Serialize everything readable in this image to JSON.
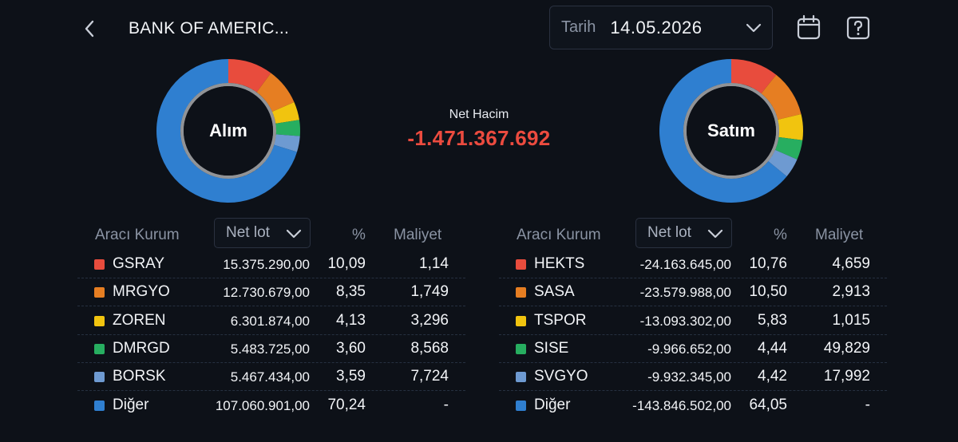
{
  "header": {
    "title": "BANK OF AMERIC...",
    "date_label": "Tarih",
    "date_value": "14.05.2026"
  },
  "net_volume": {
    "label": "Net Hacim",
    "value": "-1.471.367.692",
    "color": "#ec4b3f"
  },
  "colors": {
    "background": "#0d1118",
    "slice": [
      "#e84c3d",
      "#e67e22",
      "#f1c40f",
      "#27ae60",
      "#6e9ad1",
      "#2f7fd0"
    ]
  },
  "buy": {
    "center_label": "Alım",
    "columns": {
      "broker": "Aracı Kurum",
      "sort": "Net lot",
      "pct": "%",
      "cost": "Maliyet"
    },
    "rows": [
      {
        "name": "GSRAY",
        "lot": "15.375.290,00",
        "pct": "10,09",
        "cost": "1,14"
      },
      {
        "name": "MRGYO",
        "lot": "12.730.679,00",
        "pct": "8,35",
        "cost": "1,749"
      },
      {
        "name": "ZOREN",
        "lot": "6.301.874,00",
        "pct": "4,13",
        "cost": "3,296"
      },
      {
        "name": "DMRGD",
        "lot": "5.483.725,00",
        "pct": "3,60",
        "cost": "8,568"
      },
      {
        "name": "BORSK",
        "lot": "5.467.434,00",
        "pct": "3,59",
        "cost": "7,724"
      },
      {
        "name": "Diğer",
        "lot": "107.060.901,00",
        "pct": "70,24",
        "cost": "-"
      }
    ],
    "chart_data": {
      "type": "pie",
      "values": [
        10.09,
        8.35,
        4.13,
        3.6,
        3.59,
        70.24
      ]
    }
  },
  "sell": {
    "center_label": "Satım",
    "columns": {
      "broker": "Aracı Kurum",
      "sort": "Net lot",
      "pct": "%",
      "cost": "Maliyet"
    },
    "rows": [
      {
        "name": "HEKTS",
        "lot": "-24.163.645,00",
        "pct": "10,76",
        "cost": "4,659"
      },
      {
        "name": "SASA",
        "lot": "-23.579.988,00",
        "pct": "10,50",
        "cost": "2,913"
      },
      {
        "name": "TSPOR",
        "lot": "-13.093.302,00",
        "pct": "5,83",
        "cost": "1,015"
      },
      {
        "name": "SISE",
        "lot": "-9.966.652,00",
        "pct": "4,44",
        "cost": "49,829"
      },
      {
        "name": "SVGYO",
        "lot": "-9.932.345,00",
        "pct": "4,42",
        "cost": "17,992"
      },
      {
        "name": "Diğer",
        "lot": "-143.846.502,00",
        "pct": "64,05",
        "cost": "-"
      }
    ],
    "chart_data": {
      "type": "pie",
      "values": [
        10.76,
        10.5,
        5.83,
        4.44,
        4.42,
        64.05
      ]
    }
  }
}
